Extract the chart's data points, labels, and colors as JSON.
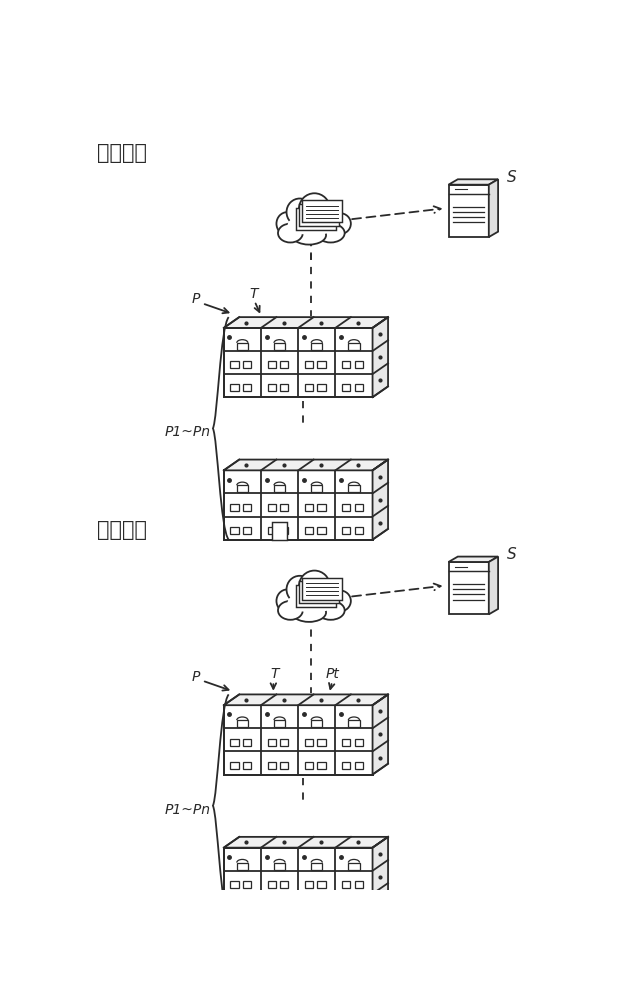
{
  "bg_color": "#ffffff",
  "line_color": "#2a2a2a",
  "title1": "训练阶段",
  "title2": "推断阶段",
  "label_S": "S",
  "label_P": "P",
  "label_T": "T",
  "label_T2": "T",
  "label_Pt": "Pt",
  "label_P1Pn": "P1~Pn",
  "label_P1Pn2": "P1~Pn",
  "font_size_title": 15,
  "font_size_label": 10
}
